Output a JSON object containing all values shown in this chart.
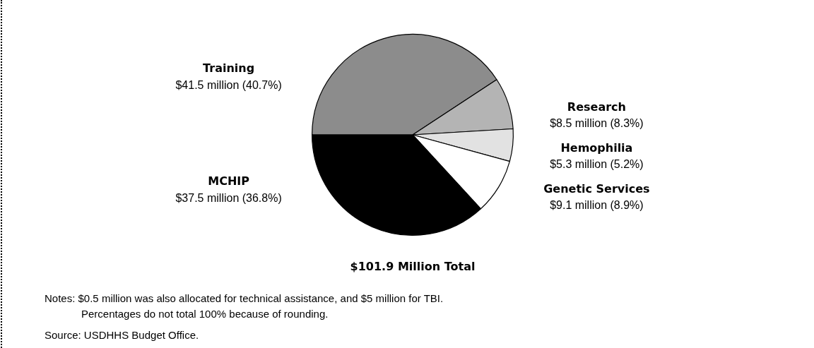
{
  "chart_data": {
    "type": "pie",
    "title": "$101.9 Million Total",
    "categories": [
      "Training",
      "Research",
      "Hemophilia",
      "Genetic Services",
      "MCHIP"
    ],
    "values": [
      40.7,
      8.3,
      5.2,
      8.9,
      36.8
    ],
    "value_labels": [
      "$41.5 million (40.7%)",
      "$8.5 million (8.3%)",
      "$5.3 million (5.2%)",
      "$9.1 million (8.9%)",
      "$37.5 million (36.8%)"
    ],
    "colors": [
      "#8c8c8c",
      "#b4b4b4",
      "#e2e2e2",
      "#ffffff",
      "#000000"
    ],
    "legend": false,
    "annotations": [
      "Notes: $0.5 million was also allocated for technical assistance, and $5 million for TBI.\nPercentages do not total 100% because of rounding.",
      "Source: USDHHS Budget Office."
    ]
  }
}
